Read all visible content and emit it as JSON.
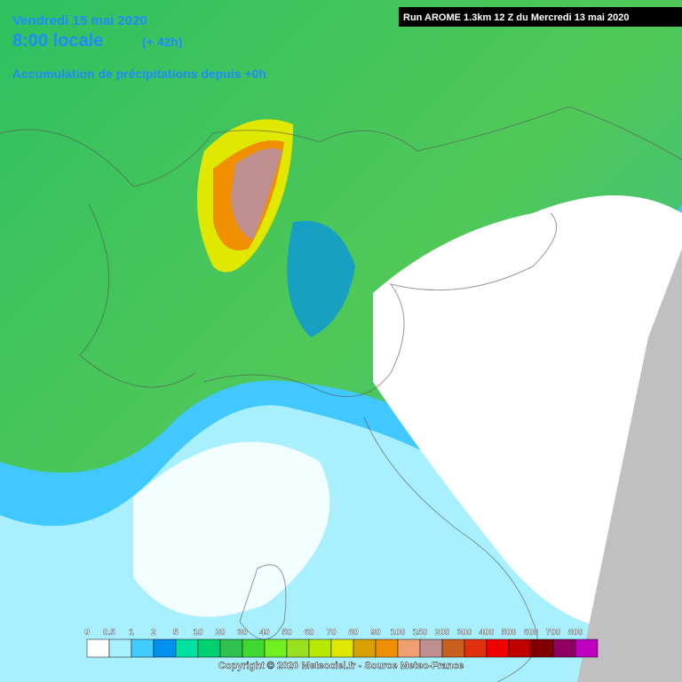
{
  "header": {
    "date": "Vendredi 15 mai 2020",
    "time": "8:00 locale",
    "lead": "(+ 42h)",
    "subtitle": "Accumulation de précipitations depuis +0h",
    "run": "Run AROME 1.3km 12 Z du Mercredi 13 mai 2020"
  },
  "legend": {
    "levels": [
      0,
      0.5,
      1,
      2,
      5,
      10,
      20,
      30,
      40,
      50,
      60,
      70,
      80,
      90,
      100,
      150,
      200,
      300,
      400,
      500,
      600,
      700,
      800
    ],
    "colors": [
      "#ffffff",
      "#a8f0ff",
      "#40ccff",
      "#0090f0",
      "#00e0a0",
      "#00d070",
      "#30c050",
      "#40d830",
      "#70f020",
      "#98e020",
      "#b8e800",
      "#e0e800",
      "#d8a000",
      "#f09000",
      "#f0a070",
      "#c09090",
      "#c86020",
      "#e03010",
      "#f00000",
      "#c00000",
      "#800000",
      "#900060",
      "#c000c0"
    ]
  },
  "copyright": "Copyright © 2020 Meteociel.fr - Source Meteo-France"
}
